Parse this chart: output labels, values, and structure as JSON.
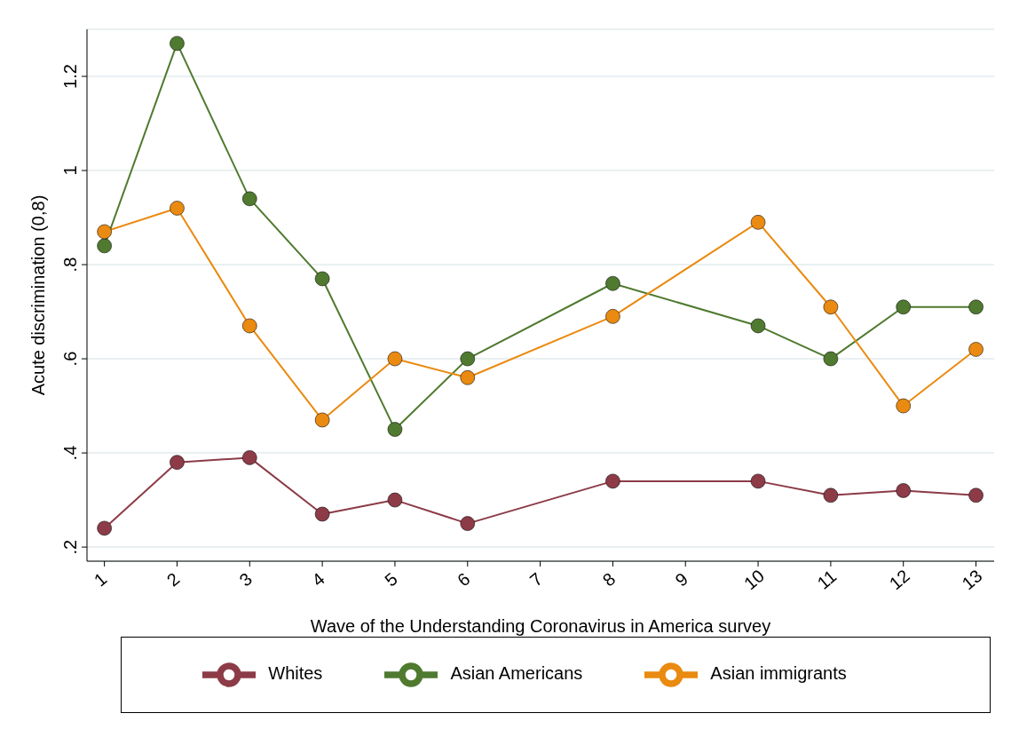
{
  "chart_data": {
    "type": "line",
    "xlabel": "Wave of the Understanding Coronavirus in America survey",
    "ylabel": "Acute discrimination (0,8)",
    "x": [
      1,
      2,
      3,
      4,
      5,
      6,
      8,
      10,
      11,
      12,
      13
    ],
    "series": [
      {
        "name": "Whites",
        "color": "#8c3b47",
        "values": [
          0.24,
          0.38,
          0.39,
          0.27,
          0.3,
          0.25,
          0.34,
          0.34,
          0.31,
          0.32,
          0.31
        ]
      },
      {
        "name": "Asian Americans",
        "color": "#4f7a2f",
        "values": [
          0.84,
          1.27,
          0.94,
          0.77,
          0.45,
          0.6,
          0.76,
          0.67,
          0.6,
          0.71,
          0.71
        ]
      },
      {
        "name": "Asian immigrants",
        "color": "#ea8a10",
        "values": [
          0.87,
          0.92,
          0.67,
          0.47,
          0.6,
          0.56,
          0.69,
          0.89,
          0.71,
          0.5,
          0.62
        ]
      }
    ],
    "xlim": [
      0.76,
      13.25
    ],
    "xticks": [
      1,
      2,
      3,
      4,
      5,
      6,
      7,
      8,
      9,
      10,
      11,
      12,
      13
    ],
    "ylim": [
      0.17,
      1.3
    ],
    "yticks": [
      {
        "value": 0.2,
        "label": ".2"
      },
      {
        "value": 0.4,
        "label": ".4"
      },
      {
        "value": 0.6,
        "label": ".6"
      },
      {
        "value": 0.8,
        "label": ".8"
      },
      {
        "value": 1,
        "label": "1"
      },
      {
        "value": 1.2,
        "label": "1.2"
      }
    ],
    "grid": "y",
    "legend": "bottom",
    "marker": "circle",
    "line_style": "solid"
  }
}
